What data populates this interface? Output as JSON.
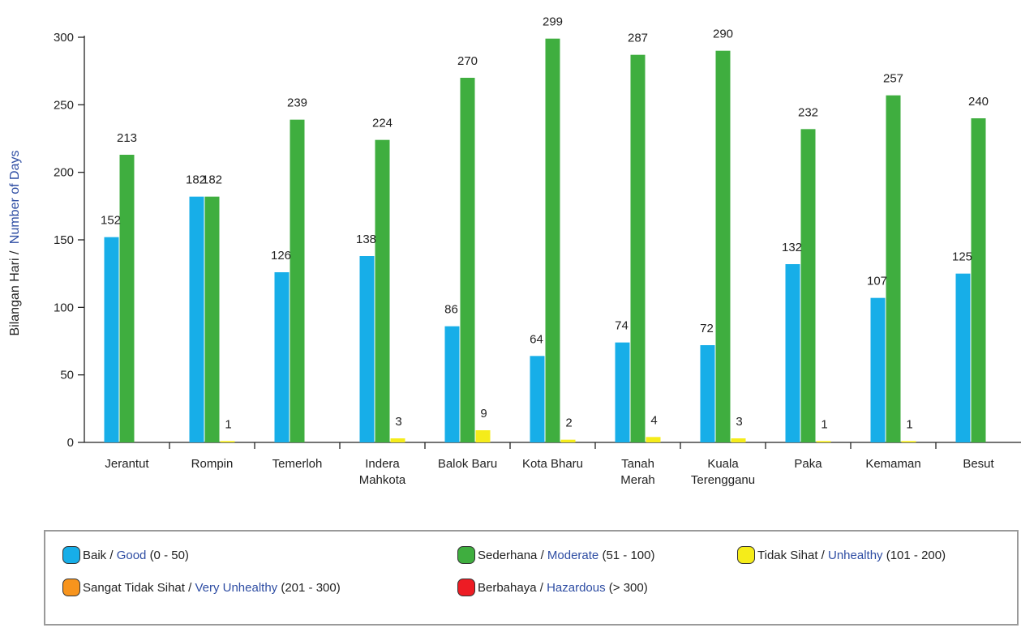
{
  "chart_data": {
    "type": "bar",
    "ylabel": {
      "malay": "Bilangan Hari /",
      "english": "Number of Days"
    },
    "ylim": [
      0,
      300
    ],
    "yticks": [
      0,
      50,
      100,
      150,
      200,
      250,
      300
    ],
    "categories": [
      [
        "Jerantut"
      ],
      [
        "Rompin"
      ],
      [
        "Temerloh"
      ],
      [
        "Indera",
        "Mahkota"
      ],
      [
        "Balok Baru"
      ],
      [
        "Kota Bharu"
      ],
      [
        "Tanah",
        "Merah"
      ],
      [
        "Kuala",
        "Terengganu"
      ],
      [
        "Paka"
      ],
      [
        "Kemaman"
      ],
      [
        "Besut"
      ]
    ],
    "series": [
      {
        "name": "Baik / Good (0 - 50)",
        "color": "#17aee8",
        "values": [
          152,
          182,
          126,
          138,
          86,
          64,
          74,
          72,
          132,
          107,
          125
        ]
      },
      {
        "name": "Sederhana / Moderate (51 - 100)",
        "color": "#3fae3f",
        "values": [
          213,
          182,
          239,
          224,
          270,
          299,
          287,
          290,
          232,
          257,
          240
        ]
      },
      {
        "name": "Tidak Sihat / Unhealthy (101 - 200)",
        "color": "#f5ec1a",
        "values": [
          null,
          1,
          null,
          3,
          9,
          2,
          4,
          3,
          1,
          1,
          null
        ]
      }
    ],
    "grid": false,
    "legend_position": "bottom"
  },
  "legend": [
    {
      "malay": "Baik /",
      "english": "Good",
      "range": "(0 - 50)",
      "color": "#17aee8"
    },
    {
      "malay": "Sederhana /",
      "english": "Moderate",
      "range": "(51 - 100)",
      "color": "#3fae3f"
    },
    {
      "malay": "Tidak Sihat /",
      "english": "Unhealthy",
      "range": "(101 - 200)",
      "color": "#f5ec1a"
    },
    {
      "malay": "Sangat Tidak Sihat /",
      "english": "Very Unhealthy",
      "range": "(201 - 300)",
      "color": "#f7941d"
    },
    {
      "malay": "Berbahaya /",
      "english": "Hazardous",
      "range": "(> 300)",
      "color": "#ed1c24"
    }
  ],
  "colors": {
    "axis": "#222222",
    "english_text": "#2e4da3",
    "malay_text": "#222222"
  }
}
